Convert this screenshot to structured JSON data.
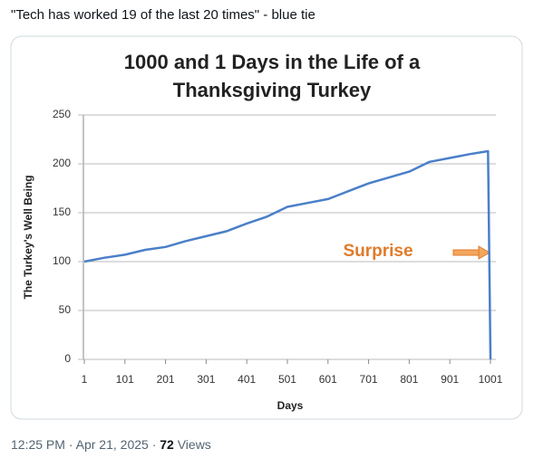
{
  "tweet_text": "\"Tech has worked 19 of the last 20 times\" - blue tie",
  "chart_data": {
    "type": "line",
    "title": [
      "1000 and 1 Days in the Life of a",
      "Thanksgiving Turkey"
    ],
    "x_label": "Days",
    "y_label": "The Turkey's Well Being",
    "annotation": "Surprise",
    "x": [
      1,
      51,
      101,
      151,
      201,
      251,
      301,
      351,
      401,
      451,
      501,
      551,
      601,
      651,
      701,
      751,
      801,
      851,
      901,
      951,
      995,
      1001
    ],
    "values": [
      100,
      104,
      107,
      112,
      115,
      121,
      126,
      131,
      139,
      146,
      156,
      160,
      164,
      172,
      180,
      186,
      192,
      202,
      206,
      210,
      213,
      0
    ],
    "color": "#4a7fc9",
    "xlim": [
      1,
      1010
    ],
    "ylim": [
      0,
      250
    ],
    "xticks": [
      1,
      101,
      201,
      301,
      401,
      501,
      601,
      701,
      801,
      901,
      1001
    ],
    "yticks": [
      0,
      50,
      100,
      150,
      200,
      250
    ],
    "grid": true
  },
  "footer": {
    "time": "12:25 PM",
    "separator": "·",
    "date": "Apr 21, 2025",
    "views_count": 72,
    "views_label": "Views"
  }
}
